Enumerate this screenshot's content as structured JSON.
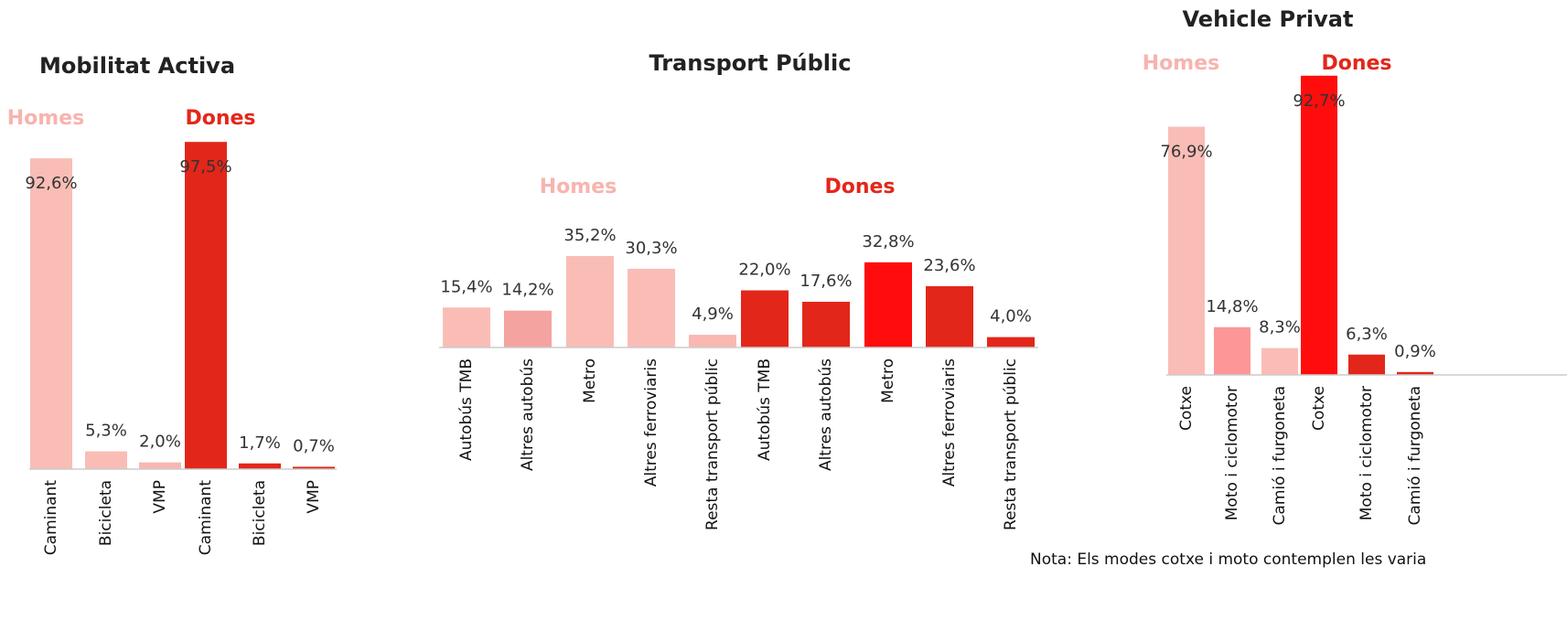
{
  "chart_data": [
    {
      "type": "bar",
      "title": "Mobilitat Activa",
      "annotations": [
        "Homes",
        "Dones"
      ],
      "annotation_colors": [
        "#f7b4ae",
        "#e3261a"
      ],
      "categories": [
        "Caminant",
        "Bicicleta",
        "VMP",
        "Caminant",
        "Bicicleta",
        "VMP"
      ],
      "values": [
        92.6,
        5.3,
        2.0,
        97.5,
        1.7,
        0.7
      ],
      "value_labels": [
        "92,6%",
        "5,3%",
        "2,0%",
        "97,5%",
        "1,7%",
        "0,7%"
      ],
      "colors": [
        "#f9bdb6",
        "#f9bdb6",
        "#f9b8b1",
        "#e3261a",
        "#e3261a",
        "#e3261a"
      ]
    },
    {
      "type": "bar",
      "title": "Transport Públic",
      "annotations": [
        "Homes",
        "Dones"
      ],
      "annotation_colors": [
        "#f7b4ae",
        "#e3261a"
      ],
      "categories": [
        "Autobús TMB",
        "Altres autobús",
        "Metro",
        "Altres ferroviaris",
        "Resta transport públic",
        "Autobús TMB",
        "Altres autobús",
        "Metro",
        "Altres ferroviaris",
        "Resta transport públic"
      ],
      "values": [
        15.4,
        14.2,
        35.2,
        30.3,
        4.9,
        22.0,
        17.6,
        32.8,
        23.6,
        4.0
      ],
      "value_labels": [
        "15,4%",
        "14,2%",
        "35,2%",
        "30,3%",
        "4,9%",
        "22,0%",
        "17,6%",
        "32,8%",
        "23,6%",
        "4,0%"
      ],
      "colors": [
        "#f9bdb6",
        "#f4a3a0",
        "#f9bdb6",
        "#f9bdb6",
        "#f9b8b1",
        "#e3261a",
        "#e3261a",
        "#ff0d0d",
        "#e3261a",
        "#e3261a"
      ]
    },
    {
      "type": "bar",
      "title": "Vehicle Privat",
      "annotations": [
        "Homes",
        "Dones"
      ],
      "annotation_colors": [
        "#f7b4ae",
        "#e3261a"
      ],
      "categories": [
        "Cotxe",
        "Moto i ciclomotor",
        "Camió i furgoneta",
        "Cotxe",
        "Moto i ciclomotor",
        "Camió i furgoneta"
      ],
      "values": [
        76.9,
        14.8,
        8.3,
        92.7,
        6.3,
        0.9
      ],
      "value_labels": [
        "76,9%",
        "14,8%",
        "8,3%",
        "92,7%",
        "6,3%",
        "0,9%"
      ],
      "colors": [
        "#f9bdb6",
        "#fd9797",
        "#f9bdb6",
        "#ff0d0d",
        "#e3261a",
        "#e3261a"
      ]
    }
  ],
  "note": "Nota: Els modes cotxe i moto contemplen les varia"
}
